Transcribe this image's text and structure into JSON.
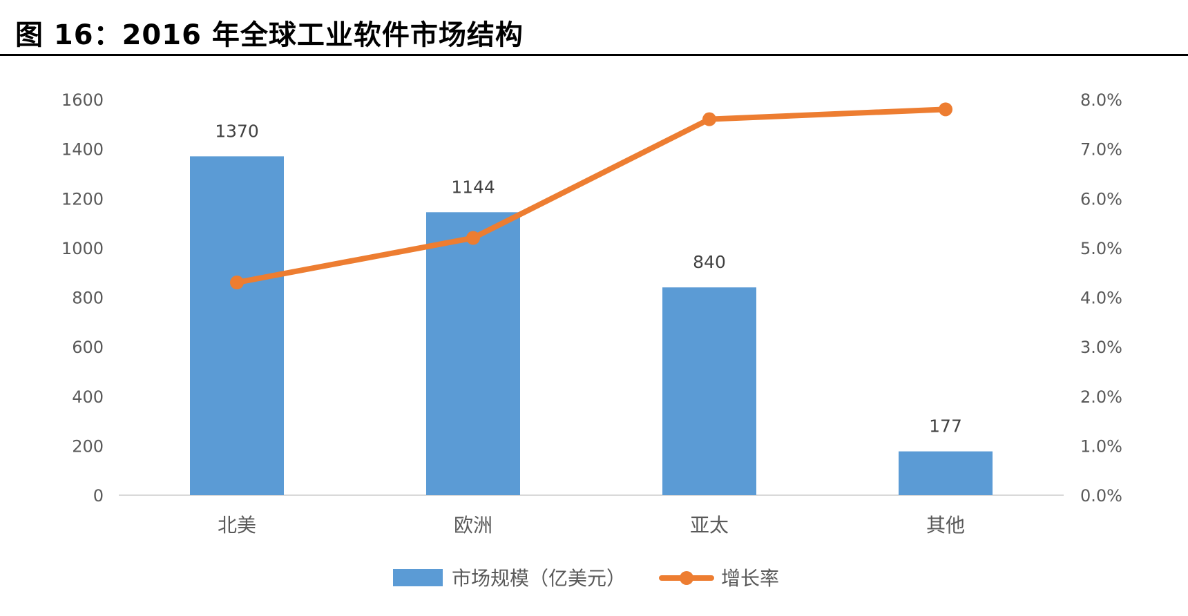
{
  "title": "图 16：2016 年全球工业软件市场结构",
  "chart_data": {
    "type": "bar+line",
    "title": "图 16：2016 年全球工业软件市场结构",
    "categories": [
      "北美",
      "欧洲",
      "亚太",
      "其他"
    ],
    "series": [
      {
        "name": "市场规模（亿美元）",
        "type": "bar",
        "axis": "left",
        "color": "#5B9BD5",
        "values": [
          1370,
          1144,
          840,
          177
        ],
        "labels": [
          "1370",
          "1144",
          "840",
          "177"
        ]
      },
      {
        "name": "增长率",
        "type": "line",
        "axis": "right",
        "color": "#ED7D31",
        "values": [
          0.043,
          0.052,
          0.076,
          0.078
        ]
      }
    ],
    "y_left": {
      "min": 0,
      "max": 1600,
      "ticks": [
        "0",
        "200",
        "400",
        "600",
        "800",
        "1000",
        "1200",
        "1400",
        "1600"
      ]
    },
    "y_right": {
      "min": 0,
      "max": 0.08,
      "ticks": [
        "0.0%",
        "1.0%",
        "2.0%",
        "3.0%",
        "4.0%",
        "5.0%",
        "6.0%",
        "7.0%",
        "8.0%"
      ]
    },
    "legend_position": "bottom",
    "grid": false
  }
}
